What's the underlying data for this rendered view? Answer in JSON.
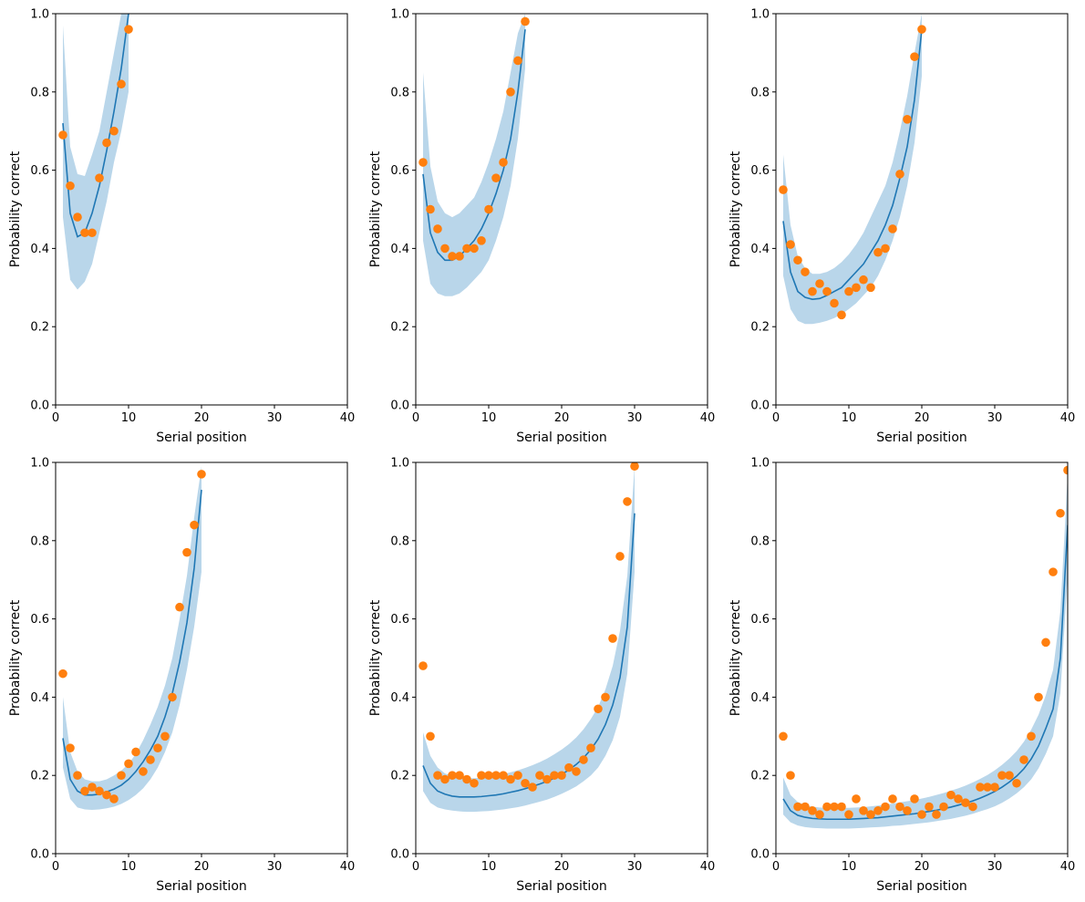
{
  "colors": {
    "line": "#1f77b4",
    "band": "#b9d6ea",
    "points": "#ff7f0e",
    "axes": "#000000"
  },
  "chart_data": [
    {
      "type": "line",
      "xlabel": "Serial position",
      "ylabel": "Probability correct",
      "xlim": [
        0,
        40
      ],
      "ylim": [
        0,
        1
      ],
      "xticks": [
        0,
        10,
        20,
        30,
        40
      ],
      "yticks": [
        0.0,
        0.2,
        0.4,
        0.6,
        0.8,
        1.0
      ],
      "grid": false,
      "model": {
        "x": [
          1,
          2,
          3,
          4,
          5,
          6,
          7,
          8,
          9,
          10
        ],
        "mean": [
          0.72,
          0.49,
          0.43,
          0.44,
          0.49,
          0.56,
          0.65,
          0.75,
          0.86,
          1.0
        ],
        "lower": [
          0.48,
          0.32,
          0.295,
          0.315,
          0.36,
          0.44,
          0.52,
          0.62,
          0.7,
          0.8
        ],
        "upper": [
          0.97,
          0.66,
          0.59,
          0.585,
          0.64,
          0.7,
          0.8,
          0.9,
          1.0,
          1.0
        ]
      },
      "observed": {
        "x": [
          1,
          2,
          3,
          4,
          5,
          6,
          7,
          8,
          9,
          10
        ],
        "y": [
          0.69,
          0.56,
          0.48,
          0.44,
          0.44,
          0.58,
          0.67,
          0.7,
          0.82,
          0.96
        ]
      }
    },
    {
      "type": "line",
      "xlabel": "Serial position",
      "ylabel": "Probability correct",
      "xlim": [
        0,
        40
      ],
      "ylim": [
        0,
        1
      ],
      "xticks": [
        0,
        10,
        20,
        30,
        40
      ],
      "yticks": [
        0.0,
        0.2,
        0.4,
        0.6,
        0.8,
        1.0
      ],
      "grid": false,
      "model": {
        "x": [
          1,
          2,
          3,
          4,
          5,
          6,
          7,
          8,
          9,
          10,
          11,
          12,
          13,
          14,
          15
        ],
        "mean": [
          0.59,
          0.44,
          0.39,
          0.37,
          0.37,
          0.38,
          0.4,
          0.42,
          0.45,
          0.49,
          0.54,
          0.6,
          0.68,
          0.8,
          0.96
        ],
        "lower": [
          0.42,
          0.31,
          0.285,
          0.278,
          0.278,
          0.285,
          0.3,
          0.32,
          0.34,
          0.37,
          0.42,
          0.48,
          0.56,
          0.68,
          0.86
        ],
        "upper": [
          0.85,
          0.61,
          0.52,
          0.49,
          0.48,
          0.49,
          0.51,
          0.53,
          0.57,
          0.62,
          0.68,
          0.75,
          0.85,
          0.95,
          1.0
        ]
      },
      "observed": {
        "x": [
          1,
          2,
          3,
          4,
          5,
          6,
          7,
          8,
          9,
          10,
          11,
          12,
          13,
          14,
          15
        ],
        "y": [
          0.62,
          0.5,
          0.45,
          0.4,
          0.38,
          0.38,
          0.4,
          0.4,
          0.42,
          0.5,
          0.58,
          0.62,
          0.8,
          0.88,
          0.98
        ]
      }
    },
    {
      "type": "line",
      "xlabel": "Serial position",
      "ylabel": "Probability correct",
      "xlim": [
        0,
        40
      ],
      "ylim": [
        0,
        1
      ],
      "xticks": [
        0,
        10,
        20,
        30,
        40
      ],
      "yticks": [
        0.0,
        0.2,
        0.4,
        0.6,
        0.8,
        1.0
      ],
      "grid": false,
      "model": {
        "x": [
          1,
          2,
          3,
          4,
          5,
          6,
          7,
          8,
          9,
          10,
          11,
          12,
          13,
          14,
          15,
          16,
          17,
          18,
          19,
          20
        ],
        "mean": [
          0.47,
          0.34,
          0.29,
          0.275,
          0.27,
          0.272,
          0.28,
          0.29,
          0.3,
          0.32,
          0.34,
          0.36,
          0.39,
          0.42,
          0.46,
          0.51,
          0.58,
          0.66,
          0.78,
          0.96
        ],
        "lower": [
          0.33,
          0.245,
          0.215,
          0.207,
          0.207,
          0.21,
          0.215,
          0.222,
          0.232,
          0.245,
          0.26,
          0.28,
          0.3,
          0.33,
          0.37,
          0.42,
          0.48,
          0.56,
          0.67,
          0.84
        ],
        "upper": [
          0.64,
          0.46,
          0.38,
          0.35,
          0.335,
          0.335,
          0.34,
          0.35,
          0.365,
          0.385,
          0.41,
          0.44,
          0.48,
          0.52,
          0.56,
          0.62,
          0.7,
          0.79,
          0.9,
          1.0
        ]
      },
      "observed": {
        "x": [
          1,
          2,
          3,
          4,
          5,
          6,
          7,
          8,
          9,
          10,
          11,
          12,
          13,
          14,
          15,
          16,
          17,
          18,
          19,
          20
        ],
        "y": [
          0.55,
          0.41,
          0.37,
          0.34,
          0.29,
          0.31,
          0.29,
          0.26,
          0.23,
          0.29,
          0.3,
          0.32,
          0.3,
          0.39,
          0.4,
          0.45,
          0.59,
          0.73,
          0.89,
          0.96
        ]
      }
    },
    {
      "type": "line",
      "xlabel": "Serial position",
      "ylabel": "Probability correct",
      "xlim": [
        0,
        40
      ],
      "ylim": [
        0,
        1
      ],
      "xticks": [
        0,
        10,
        20,
        30,
        40
      ],
      "yticks": [
        0.0,
        0.2,
        0.4,
        0.6,
        0.8,
        1.0
      ],
      "grid": false,
      "model": {
        "x": [
          1,
          2,
          3,
          4,
          5,
          6,
          7,
          8,
          9,
          10,
          11,
          12,
          13,
          14,
          15,
          16,
          17,
          18,
          19,
          20
        ],
        "mean": [
          0.295,
          0.19,
          0.16,
          0.15,
          0.15,
          0.152,
          0.158,
          0.165,
          0.175,
          0.19,
          0.21,
          0.235,
          0.265,
          0.3,
          0.35,
          0.41,
          0.49,
          0.59,
          0.73,
          0.93
        ],
        "lower": [
          0.22,
          0.14,
          0.118,
          0.113,
          0.112,
          0.113,
          0.116,
          0.12,
          0.127,
          0.137,
          0.15,
          0.167,
          0.19,
          0.22,
          0.26,
          0.31,
          0.38,
          0.47,
          0.58,
          0.72
        ],
        "upper": [
          0.4,
          0.26,
          0.21,
          0.19,
          0.185,
          0.185,
          0.19,
          0.2,
          0.212,
          0.23,
          0.255,
          0.29,
          0.33,
          0.375,
          0.43,
          0.5,
          0.6,
          0.71,
          0.86,
          0.99
        ]
      },
      "observed": {
        "x": [
          1,
          2,
          3,
          4,
          5,
          6,
          7,
          8,
          9,
          10,
          11,
          12,
          13,
          14,
          15,
          16,
          17,
          18,
          19,
          20
        ],
        "y": [
          0.46,
          0.27,
          0.2,
          0.16,
          0.17,
          0.16,
          0.15,
          0.14,
          0.2,
          0.23,
          0.26,
          0.21,
          0.24,
          0.27,
          0.3,
          0.4,
          0.63,
          0.77,
          0.84,
          0.97
        ]
      }
    },
    {
      "type": "line",
      "xlabel": "Serial position",
      "ylabel": "Probability correct",
      "xlim": [
        0,
        40
      ],
      "ylim": [
        0,
        1
      ],
      "xticks": [
        0,
        10,
        20,
        30,
        40
      ],
      "yticks": [
        0.0,
        0.2,
        0.4,
        0.6,
        0.8,
        1.0
      ],
      "grid": false,
      "model": {
        "x": [
          1,
          2,
          3,
          4,
          5,
          6,
          7,
          8,
          9,
          10,
          11,
          12,
          13,
          14,
          15,
          16,
          17,
          18,
          19,
          20,
          21,
          22,
          23,
          24,
          25,
          26,
          27,
          28,
          29,
          30
        ],
        "mean": [
          0.225,
          0.18,
          0.16,
          0.152,
          0.147,
          0.145,
          0.145,
          0.145,
          0.146,
          0.148,
          0.15,
          0.153,
          0.157,
          0.161,
          0.166,
          0.172,
          0.178,
          0.185,
          0.193,
          0.203,
          0.214,
          0.228,
          0.245,
          0.266,
          0.293,
          0.33,
          0.38,
          0.45,
          0.58,
          0.87
        ],
        "lower": [
          0.16,
          0.13,
          0.118,
          0.113,
          0.11,
          0.108,
          0.107,
          0.107,
          0.108,
          0.109,
          0.111,
          0.113,
          0.116,
          0.119,
          0.123,
          0.128,
          0.133,
          0.138,
          0.145,
          0.153,
          0.162,
          0.172,
          0.185,
          0.2,
          0.22,
          0.25,
          0.29,
          0.35,
          0.46,
          0.72
        ],
        "upper": [
          0.31,
          0.25,
          0.22,
          0.205,
          0.198,
          0.195,
          0.193,
          0.193,
          0.194,
          0.196,
          0.199,
          0.203,
          0.208,
          0.213,
          0.219,
          0.226,
          0.234,
          0.243,
          0.254,
          0.266,
          0.28,
          0.297,
          0.318,
          0.344,
          0.375,
          0.42,
          0.48,
          0.57,
          0.71,
          0.99
        ]
      },
      "observed": {
        "x": [
          1,
          2,
          3,
          4,
          5,
          6,
          7,
          8,
          9,
          10,
          11,
          12,
          13,
          14,
          15,
          16,
          17,
          18,
          19,
          20,
          21,
          22,
          23,
          24,
          25,
          26,
          27,
          28,
          29,
          30
        ],
        "y": [
          0.48,
          0.3,
          0.2,
          0.19,
          0.2,
          0.2,
          0.19,
          0.18,
          0.2,
          0.2,
          0.2,
          0.2,
          0.19,
          0.2,
          0.18,
          0.17,
          0.2,
          0.19,
          0.2,
          0.2,
          0.22,
          0.21,
          0.24,
          0.27,
          0.37,
          0.4,
          0.55,
          0.76,
          0.9,
          0.99
        ]
      }
    },
    {
      "type": "line",
      "xlabel": "Serial position",
      "ylabel": "Probability correct",
      "xlim": [
        0,
        40
      ],
      "ylim": [
        0,
        1
      ],
      "xticks": [
        0,
        10,
        20,
        30,
        40
      ],
      "yticks": [
        0.0,
        0.2,
        0.4,
        0.6,
        0.8,
        1.0
      ],
      "grid": false,
      "model": {
        "x": [
          1,
          2,
          3,
          4,
          5,
          6,
          7,
          8,
          9,
          10,
          11,
          12,
          13,
          14,
          15,
          16,
          17,
          18,
          19,
          20,
          21,
          22,
          23,
          24,
          25,
          26,
          27,
          28,
          29,
          30,
          31,
          32,
          33,
          34,
          35,
          36,
          37,
          38,
          39,
          40
        ],
        "mean": [
          0.14,
          0.11,
          0.098,
          0.093,
          0.09,
          0.089,
          0.088,
          0.088,
          0.088,
          0.088,
          0.089,
          0.09,
          0.091,
          0.092,
          0.094,
          0.096,
          0.098,
          0.1,
          0.102,
          0.105,
          0.108,
          0.111,
          0.115,
          0.119,
          0.124,
          0.129,
          0.135,
          0.142,
          0.15,
          0.159,
          0.17,
          0.183,
          0.198,
          0.217,
          0.242,
          0.275,
          0.32,
          0.37,
          0.5,
          0.84
        ],
        "lower": [
          0.1,
          0.08,
          0.072,
          0.068,
          0.066,
          0.065,
          0.064,
          0.064,
          0.064,
          0.064,
          0.065,
          0.066,
          0.067,
          0.068,
          0.069,
          0.071,
          0.072,
          0.074,
          0.076,
          0.078,
          0.08,
          0.083,
          0.086,
          0.089,
          0.093,
          0.097,
          0.102,
          0.108,
          0.114,
          0.121,
          0.13,
          0.141,
          0.154,
          0.17,
          0.19,
          0.218,
          0.255,
          0.3,
          0.41,
          0.71
        ],
        "upper": [
          0.195,
          0.15,
          0.132,
          0.124,
          0.12,
          0.118,
          0.117,
          0.117,
          0.117,
          0.117,
          0.118,
          0.119,
          0.121,
          0.123,
          0.125,
          0.128,
          0.131,
          0.134,
          0.137,
          0.141,
          0.145,
          0.15,
          0.155,
          0.161,
          0.167,
          0.174,
          0.182,
          0.191,
          0.201,
          0.213,
          0.227,
          0.243,
          0.262,
          0.286,
          0.317,
          0.355,
          0.405,
          0.47,
          0.62,
          0.97
        ]
      },
      "observed": {
        "x": [
          1,
          2,
          3,
          4,
          5,
          6,
          7,
          8,
          9,
          10,
          11,
          12,
          13,
          14,
          15,
          16,
          17,
          18,
          19,
          20,
          21,
          22,
          23,
          24,
          25,
          26,
          27,
          28,
          29,
          30,
          31,
          32,
          33,
          34,
          35,
          36,
          37,
          38,
          39,
          40
        ],
        "y": [
          0.3,
          0.2,
          0.12,
          0.12,
          0.11,
          0.1,
          0.12,
          0.12,
          0.12,
          0.1,
          0.14,
          0.11,
          0.1,
          0.11,
          0.12,
          0.14,
          0.12,
          0.11,
          0.14,
          0.1,
          0.12,
          0.1,
          0.12,
          0.15,
          0.14,
          0.13,
          0.12,
          0.17,
          0.17,
          0.17,
          0.2,
          0.2,
          0.18,
          0.24,
          0.3,
          0.4,
          0.54,
          0.72,
          0.87,
          0.98
        ]
      }
    }
  ]
}
